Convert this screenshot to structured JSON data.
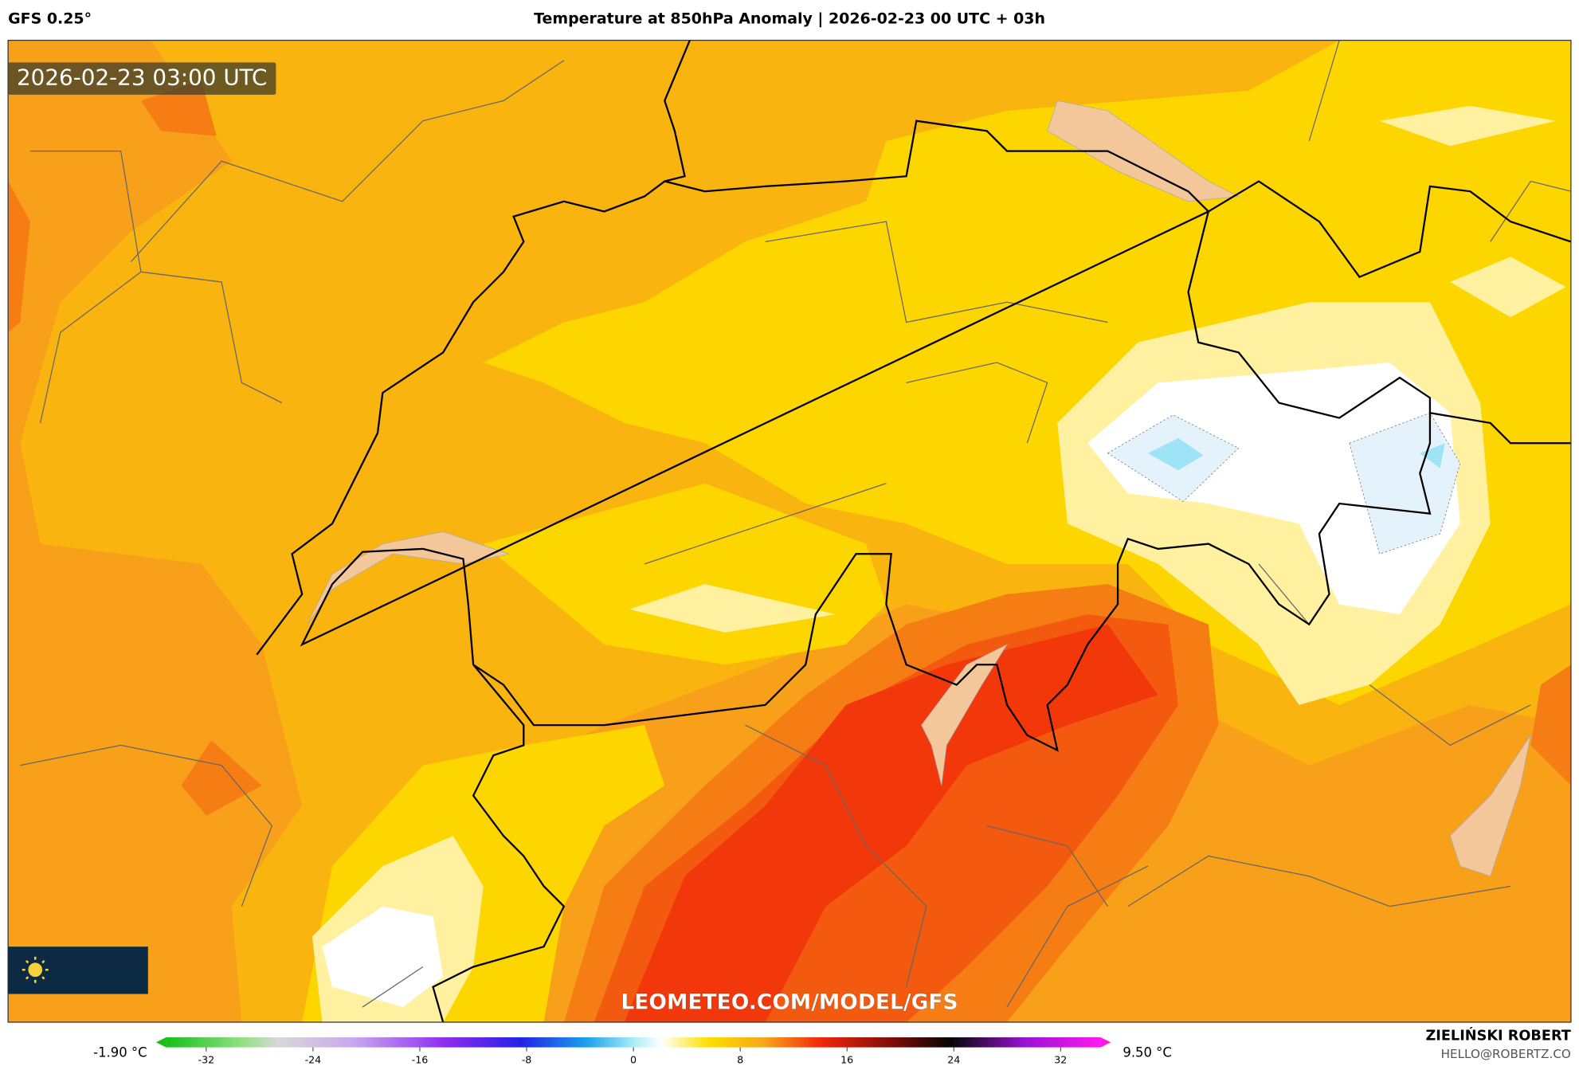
{
  "header": {
    "model": "GFS 0.25°",
    "title": "Temperature at 850hPa Anomaly | 2026-02-23 00 UTC + 03h"
  },
  "map": {
    "timestamp": "2026-02-23 03:00 UTC",
    "watermark": "LEOMETEO.COM/MODEL/GFS"
  },
  "colorbar": {
    "min_label": "-1.90 °C",
    "max_label": "9.50 °C",
    "range": [
      -35,
      35
    ],
    "ticks": [
      -32,
      -24,
      -16,
      -8,
      0,
      8,
      16,
      24,
      32
    ]
  },
  "footer": {
    "author": "ZIELIŃSKI ROBERT",
    "email": "HELLO@ROBERTZ.CO"
  }
}
